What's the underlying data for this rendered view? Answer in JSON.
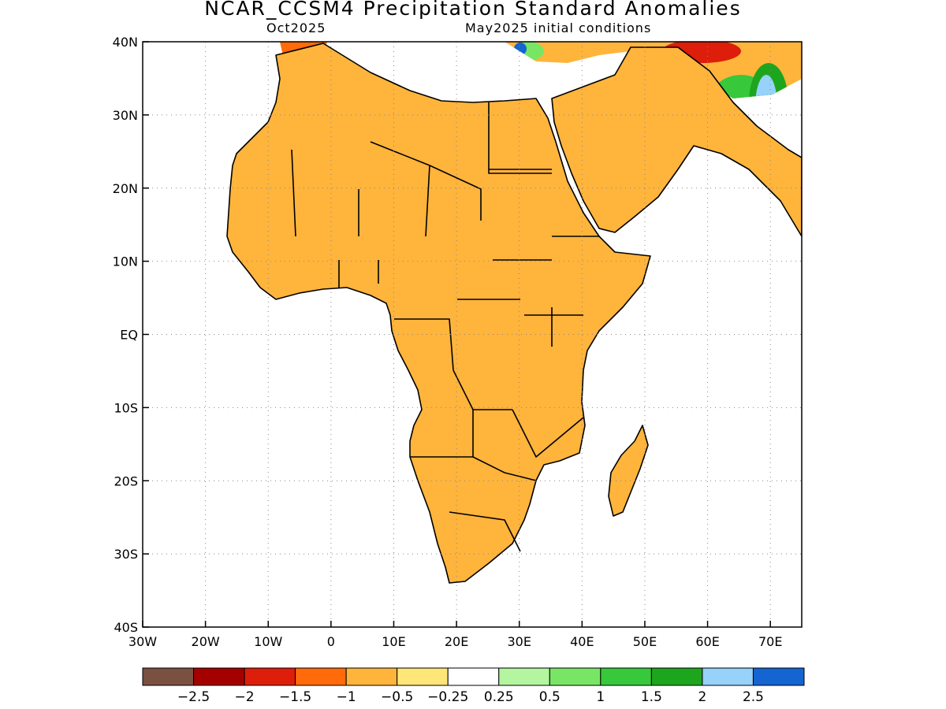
{
  "title": "NCAR_CCSM4 Precipitation Standard Anomalies",
  "subtitle_left": "Oct2025",
  "subtitle_right": "May2025 initial conditions",
  "x_axis": {
    "ticks": [
      {
        "lon": -30,
        "label": "30W"
      },
      {
        "lon": -20,
        "label": "20W"
      },
      {
        "lon": -10,
        "label": "10W"
      },
      {
        "lon": 0,
        "label": "0"
      },
      {
        "lon": 10,
        "label": "10E"
      },
      {
        "lon": 20,
        "label": "20E"
      },
      {
        "lon": 30,
        "label": "30E"
      },
      {
        "lon": 40,
        "label": "40E"
      },
      {
        "lon": 50,
        "label": "50E"
      },
      {
        "lon": 60,
        "label": "60E"
      },
      {
        "lon": 70,
        "label": "70E"
      }
    ],
    "range": [
      -30,
      75
    ]
  },
  "y_axis": {
    "ticks": [
      {
        "lat": 40,
        "label": "40N"
      },
      {
        "lat": 30,
        "label": "30N"
      },
      {
        "lat": 20,
        "label": "20N"
      },
      {
        "lat": 10,
        "label": "10N"
      },
      {
        "lat": 0,
        "label": "EQ"
      },
      {
        "lat": -10,
        "label": "10S"
      },
      {
        "lat": -20,
        "label": "20S"
      },
      {
        "lat": -30,
        "label": "30S"
      },
      {
        "lat": -40,
        "label": "40S"
      }
    ],
    "range": [
      -40,
      40
    ]
  },
  "grid": "dotted",
  "colorbar": {
    "colors": [
      "#7a5040",
      "#a50000",
      "#dc1e0a",
      "#ff6a0a",
      "#ffb43c",
      "#ffe678",
      "#ffffff",
      "#b4f5a0",
      "#78e664",
      "#37c83c",
      "#1ea51e",
      "#96d2fa",
      "#1464d2"
    ],
    "labels": [
      "-2.5",
      "-2",
      "-1.5",
      "-1",
      "-0.5",
      "-0.25",
      "0.25",
      "0.5",
      "1",
      "1.5",
      "2",
      "2.5"
    ]
  },
  "colors": {
    "brown": "#7a5040",
    "dark_red": "#a50000",
    "red": "#dc1e0a",
    "orange": "#ff6a0a",
    "light_orange": "#ffb43c",
    "yellow": "#ffe678",
    "light_green": "#b4f5a0",
    "green": "#78e664",
    "mid_green": "#37c83c",
    "dark_green": "#1ea51e",
    "light_blue": "#96d2fa",
    "blue": "#1464d2"
  }
}
